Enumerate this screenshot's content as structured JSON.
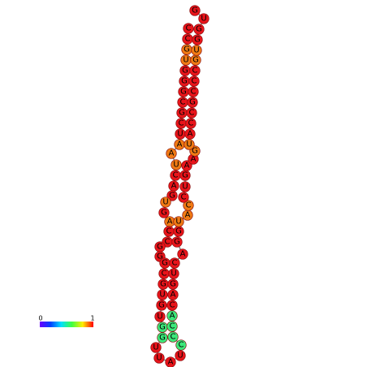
{
  "nodes": [
    {
      "label": "C",
      "color": "#e8141a"
    },
    {
      "label": "C",
      "color": "#e8141a"
    },
    {
      "label": "G",
      "color": "#f07a14"
    },
    {
      "label": "U",
      "color": "#f07a14"
    },
    {
      "label": "G",
      "color": "#e8141a"
    },
    {
      "label": "G",
      "color": "#e8141a"
    },
    {
      "label": "G",
      "color": "#e8141a"
    },
    {
      "label": "C",
      "color": "#e8141a"
    },
    {
      "label": "G",
      "color": "#e8141a"
    },
    {
      "label": "C",
      "color": "#e8141a"
    },
    {
      "label": "U",
      "color": "#e8141a"
    },
    {
      "label": "A",
      "color": "#f07a14"
    },
    {
      "label": "A",
      "color": "#f07a14"
    },
    {
      "label": "U",
      "color": "#f07a14"
    },
    {
      "label": "C",
      "color": "#e8141a"
    },
    {
      "label": "A",
      "color": "#e8141a"
    },
    {
      "label": "G",
      "color": "#e8141a"
    },
    {
      "label": "U",
      "color": "#f07a14"
    },
    {
      "label": "G",
      "color": "#e8141a"
    },
    {
      "label": "A",
      "color": "#f07a14"
    },
    {
      "label": "C",
      "color": "#e8141a"
    },
    {
      "label": "C",
      "color": "#e8141a"
    },
    {
      "label": "G",
      "color": "#e8141a"
    },
    {
      "label": "G",
      "color": "#e8141a"
    },
    {
      "label": "G",
      "color": "#e8141a"
    },
    {
      "label": "C",
      "color": "#e8141a"
    },
    {
      "label": "G",
      "color": "#e8141a"
    },
    {
      "label": "U",
      "color": "#e8141a"
    },
    {
      "label": "G",
      "color": "#e8141a"
    },
    {
      "label": "U",
      "color": "#e8141a"
    },
    {
      "label": "G",
      "color": "#3ce87a"
    },
    {
      "label": "G",
      "color": "#3ce87a"
    },
    {
      "label": "U",
      "color": "#e8141a"
    },
    {
      "label": "U",
      "color": "#e8141a"
    },
    {
      "label": "A",
      "color": "#e8141a"
    },
    {
      "label": "U",
      "color": "#e8141a"
    },
    {
      "label": "C",
      "color": "#3ce87a"
    },
    {
      "label": "C",
      "color": "#3ce87a"
    },
    {
      "label": "C",
      "color": "#3ce87a"
    },
    {
      "label": "A",
      "color": "#3ce87a"
    },
    {
      "label": "C",
      "color": "#e8141a"
    },
    {
      "label": "A",
      "color": "#e8141a"
    },
    {
      "label": "G",
      "color": "#e8141a"
    },
    {
      "label": "U",
      "color": "#e8141a"
    },
    {
      "label": "C",
      "color": "#e8141a"
    },
    {
      "label": "A",
      "color": "#e8141a"
    },
    {
      "label": "G",
      "color": "#e8141a"
    },
    {
      "label": "G",
      "color": "#e8141a"
    },
    {
      "label": "U",
      "color": "#f07a14"
    },
    {
      "label": "A",
      "color": "#f07a14"
    },
    {
      "label": "C",
      "color": "#f07a14"
    },
    {
      "label": "C",
      "color": "#e8141a"
    },
    {
      "label": "U",
      "color": "#e8141a"
    },
    {
      "label": "G",
      "color": "#e8141a"
    },
    {
      "label": "A",
      "color": "#e8141a"
    },
    {
      "label": "A",
      "color": "#e8141a"
    },
    {
      "label": "G",
      "color": "#f07a14"
    },
    {
      "label": "U",
      "color": "#f07a14"
    },
    {
      "label": "A",
      "color": "#e8141a"
    },
    {
      "label": "C",
      "color": "#e8141a"
    },
    {
      "label": "C",
      "color": "#e8141a"
    },
    {
      "label": "G",
      "color": "#e8141a"
    },
    {
      "label": "C",
      "color": "#e8141a"
    },
    {
      "label": "C",
      "color": "#e8141a"
    },
    {
      "label": "C",
      "color": "#e8141a"
    },
    {
      "label": "G",
      "color": "#f07a14"
    },
    {
      "label": "U",
      "color": "#f07a14"
    },
    {
      "label": "G",
      "color": "#e8141a"
    },
    {
      "label": "G",
      "color": "#e8141a"
    },
    {
      "label": "U",
      "color": "#e8141a"
    },
    {
      "label": "G",
      "color": "#e8141a"
    }
  ],
  "colorbar": {
    "min_label": "0",
    "max_label": "1"
  }
}
